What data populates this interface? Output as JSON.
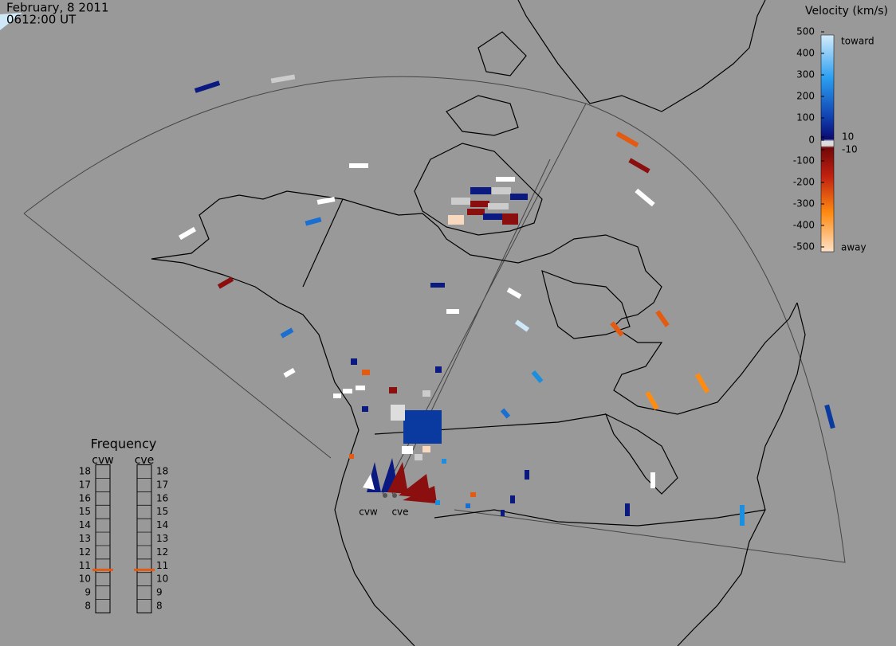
{
  "header": {
    "date": "February, 8 2011",
    "time": "0612:00 UT"
  },
  "colorbar": {
    "title": "Velocity (km/s)",
    "ticks": [
      500,
      400,
      300,
      200,
      100,
      10,
      0,
      -10,
      -100,
      -200,
      -300,
      -400,
      -500
    ],
    "top_label": "toward",
    "bottom_label": "away"
  },
  "frequency": {
    "title": "Frequency",
    "ticks": [
      18,
      17,
      16,
      15,
      14,
      13,
      12,
      11,
      10,
      9,
      8
    ],
    "radars": [
      {
        "name": "cvw",
        "value": 10.7
      },
      {
        "name": "cve",
        "value": 10.7
      }
    ]
  },
  "stations": [
    "cvw",
    "cve"
  ]
}
